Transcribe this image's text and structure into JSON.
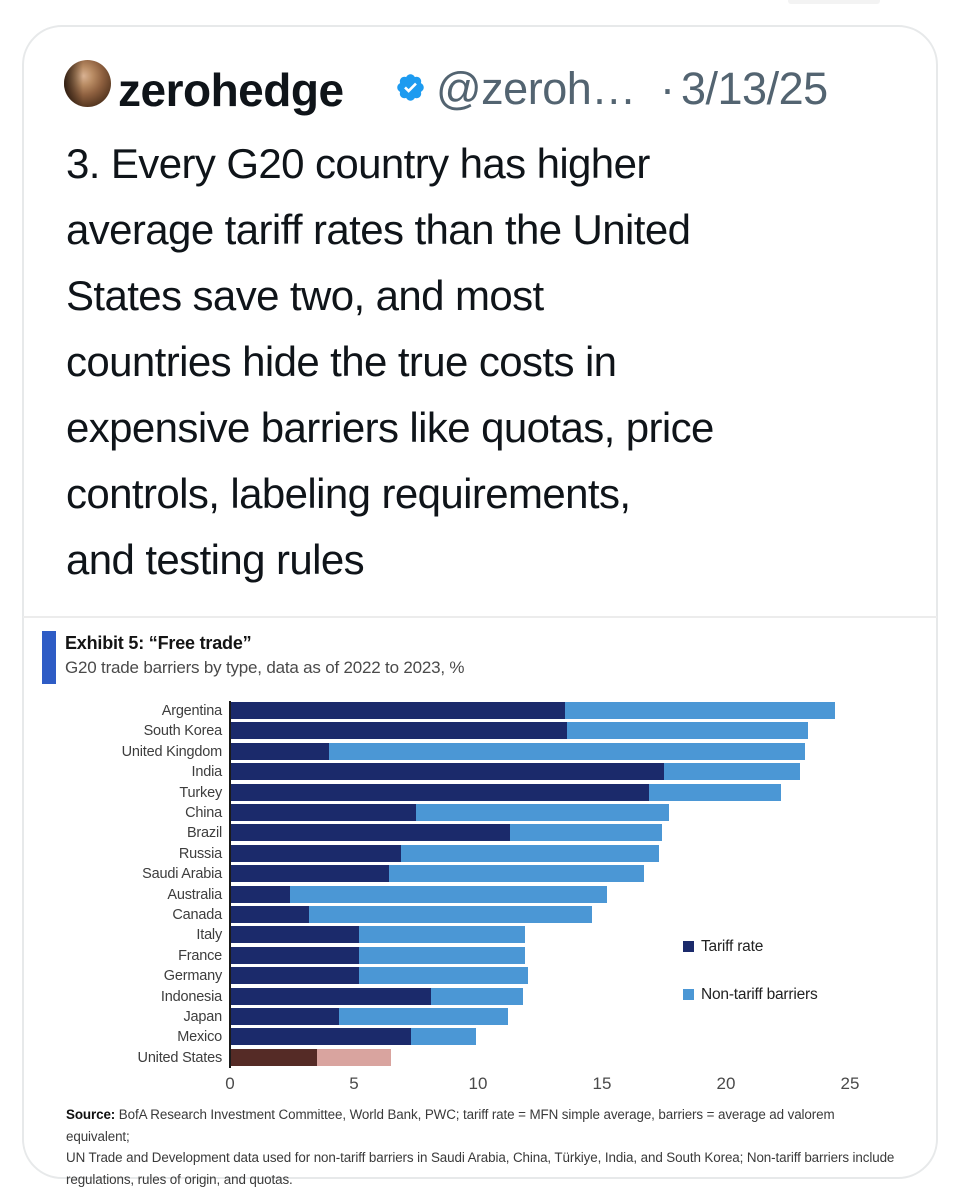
{
  "tweet": {
    "author": "zerohedge",
    "handle": "@zeroh…",
    "separator": "·",
    "date": "3/13/25",
    "verified_icon": "blue-checkmark",
    "body_lines": [
      "3. Every G20 country has higher",
      "average tariff rates than the United",
      "States save two, and most",
      "countries hide the true costs in",
      "expensive barriers like quotas, price",
      "controls, labeling requirements,",
      "and testing rules"
    ]
  },
  "chart": {
    "exhibit_title": "Exhibit 5: “Free trade”",
    "subtitle": "G20 trade barriers by type, data as of 2022 to 2023, %",
    "legend": [
      {
        "label": "Tariff rate",
        "color": "#1b2a6b"
      },
      {
        "label": "Non-tariff barriers",
        "color": "#4b97d5"
      }
    ],
    "source_prefix": "Source:",
    "source_lines": [
      " BofA Research Investment Committee, World Bank, PWC; tariff rate = MFN simple average, barriers = average ad valorem equivalent;",
      "UN Trade and Development data used for non-tariff barriers in Saudi Arabia, China, Türkiye, India, and South Korea; Non-tariff barriers include",
      "regulations, rules of origin, and quotas."
    ],
    "chart_data": {
      "type": "bar",
      "orientation": "horizontal",
      "stacked": true,
      "title": "Exhibit 5: “Free trade”",
      "subtitle": "G20 trade barriers by type, data as of 2022 to 2023, %",
      "xlabel": "%",
      "xlim": [
        0,
        25
      ],
      "xticks": [
        0,
        5,
        10,
        15,
        20,
        25
      ],
      "grid": false,
      "legend_position": "right-middle",
      "categories": [
        "Argentina",
        "South Korea",
        "United Kingdom",
        "India",
        "Turkey",
        "China",
        "Brazil",
        "Russia",
        "Saudi Arabia",
        "Australia",
        "Canada",
        "Italy",
        "France",
        "Germany",
        "Indonesia",
        "Japan",
        "Mexico",
        "United States"
      ],
      "series": [
        {
          "name": "Tariff rate",
          "color": "#1b2a6b",
          "values": [
            13.5,
            13.6,
            4.0,
            17.5,
            16.9,
            7.5,
            11.3,
            6.9,
            6.4,
            2.4,
            3.2,
            5.2,
            5.2,
            5.2,
            8.1,
            4.4,
            7.3,
            3.5
          ]
        },
        {
          "name": "Non-tariff barriers",
          "color": "#4b97d5",
          "values": [
            10.9,
            9.7,
            19.2,
            5.5,
            5.3,
            10.2,
            6.1,
            10.4,
            10.3,
            12.8,
            11.4,
            6.7,
            6.7,
            6.8,
            3.7,
            6.8,
            2.6,
            3.0
          ]
        }
      ],
      "highlight": {
        "category": "United States",
        "tariff_color": "#552b26",
        "non_tariff_color": "#d9a49f"
      }
    }
  }
}
